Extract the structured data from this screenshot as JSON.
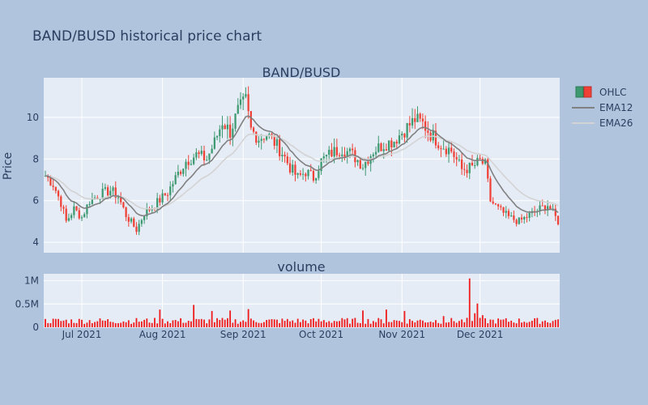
{
  "page_title": "BAND/BUSD historical price chart",
  "colors": {
    "background": "#b0c4de",
    "plot_bg": "#e5ecf6",
    "increasing": "#3d9970",
    "decreasing": "#ef4136",
    "ema12": "#808080",
    "ema26": "#d3d3d3",
    "text": "#2a3f5f",
    "volume": "#ef1a1a"
  },
  "chart_data": [
    {
      "type": "candlestick",
      "title": "BAND/BUSD",
      "ylabel": "Price",
      "xlabel": "",
      "x_start": "2021-06-17",
      "x_end": "2021-12-31",
      "x_ticks": [
        "Jul 2021",
        "Aug 2021",
        "Sep 2021",
        "Oct 2021",
        "Nov 2021",
        "Dec 2021"
      ],
      "y_ticks": [
        "4",
        "6",
        "8",
        "10"
      ],
      "ylim": [
        3.5,
        11.9
      ],
      "grid": true,
      "legend_position": "top-right",
      "legend": [
        "OHLC",
        "EMA12",
        "EMA26"
      ],
      "close_anchors": [
        [
          "2021-06-17",
          7.2
        ],
        [
          "2021-06-20",
          6.8
        ],
        [
          "2021-06-23",
          5.9
        ],
        [
          "2021-06-25",
          5.0
        ],
        [
          "2021-06-28",
          5.6
        ],
        [
          "2021-07-01",
          5.2
        ],
        [
          "2021-07-04",
          6.0
        ],
        [
          "2021-07-08",
          6.3
        ],
        [
          "2021-07-12",
          6.5
        ],
        [
          "2021-07-15",
          6.2
        ],
        [
          "2021-07-18",
          5.3
        ],
        [
          "2021-07-22",
          4.6
        ],
        [
          "2021-07-25",
          5.4
        ],
        [
          "2021-07-29",
          5.8
        ],
        [
          "2021-08-03",
          6.4
        ],
        [
          "2021-08-07",
          7.3
        ],
        [
          "2021-08-10",
          7.9
        ],
        [
          "2021-08-14",
          8.2
        ],
        [
          "2021-08-18",
          8.0
        ],
        [
          "2021-08-21",
          8.8
        ],
        [
          "2021-08-24",
          9.8
        ],
        [
          "2021-08-27",
          9.3
        ],
        [
          "2021-08-30",
          10.3
        ],
        [
          "2021-09-02",
          10.8
        ],
        [
          "2021-09-04",
          9.4
        ],
        [
          "2021-09-07",
          9.0
        ],
        [
          "2021-09-10",
          9.2
        ],
        [
          "2021-09-13",
          8.8
        ],
        [
          "2021-09-16",
          8.3
        ],
        [
          "2021-09-19",
          7.6
        ],
        [
          "2021-09-22",
          7.1
        ],
        [
          "2021-09-25",
          7.4
        ],
        [
          "2021-09-28",
          7.1
        ],
        [
          "2021-10-01",
          7.9
        ],
        [
          "2021-10-05",
          8.3
        ],
        [
          "2021-10-09",
          8.5
        ],
        [
          "2021-10-13",
          8.2
        ],
        [
          "2021-10-17",
          7.7
        ],
        [
          "2021-10-21",
          8.4
        ],
        [
          "2021-10-25",
          8.7
        ],
        [
          "2021-10-29",
          8.9
        ],
        [
          "2021-11-02",
          9.4
        ],
        [
          "2021-11-06",
          9.9
        ],
        [
          "2021-11-09",
          9.7
        ],
        [
          "2021-11-12",
          9.2
        ],
        [
          "2021-11-16",
          8.7
        ],
        [
          "2021-11-20",
          8.4
        ],
        [
          "2021-11-24",
          7.5
        ],
        [
          "2021-11-28",
          7.6
        ],
        [
          "2021-12-01",
          7.9
        ],
        [
          "2021-12-03",
          7.7
        ],
        [
          "2021-12-05",
          6.0
        ],
        [
          "2021-12-08",
          5.6
        ],
        [
          "2021-12-12",
          5.2
        ],
        [
          "2021-12-16",
          5.0
        ],
        [
          "2021-12-20",
          5.3
        ],
        [
          "2021-12-24",
          5.6
        ],
        [
          "2021-12-27",
          5.8
        ],
        [
          "2021-12-31",
          5.0
        ]
      ]
    },
    {
      "type": "bar",
      "title": "volume",
      "y_ticks": [
        "0",
        "0.5M",
        "1M"
      ],
      "ylim": [
        0,
        1150000
      ],
      "baseline_volume": 120000,
      "volume_spikes": [
        [
          "2021-07-31",
          380000
        ],
        [
          "2021-08-13",
          480000
        ],
        [
          "2021-08-20",
          350000
        ],
        [
          "2021-08-27",
          360000
        ],
        [
          "2021-09-03",
          390000
        ],
        [
          "2021-10-17",
          360000
        ],
        [
          "2021-10-26",
          380000
        ],
        [
          "2021-11-02",
          350000
        ],
        [
          "2021-11-17",
          240000
        ],
        [
          "2021-11-27",
          1050000
        ],
        [
          "2021-11-30",
          510000
        ],
        [
          "2021-11-29",
          300000
        ],
        [
          "2021-12-02",
          260000
        ],
        [
          "2021-12-31",
          170000
        ]
      ]
    }
  ]
}
